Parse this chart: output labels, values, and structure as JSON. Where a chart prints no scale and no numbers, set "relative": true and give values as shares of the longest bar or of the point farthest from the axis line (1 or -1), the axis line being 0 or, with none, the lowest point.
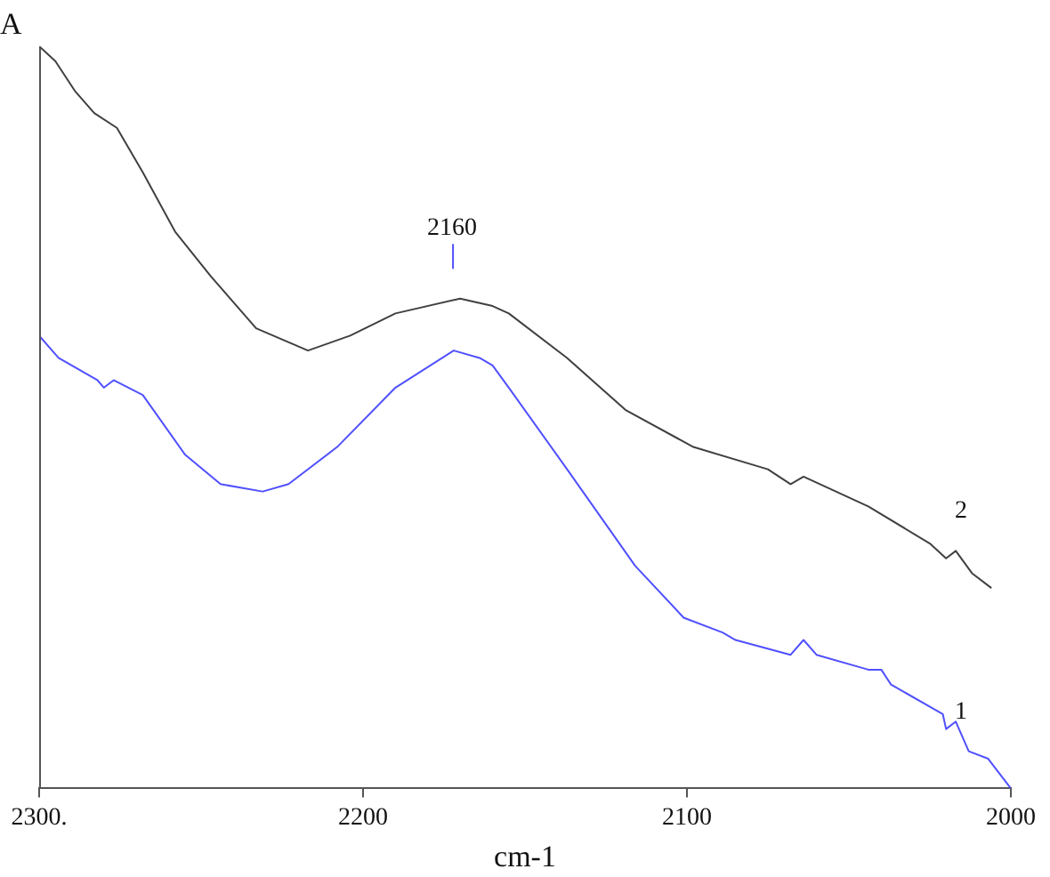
{
  "chart_data": {
    "type": "line",
    "ylabel": "A",
    "xlabel": "cm-1",
    "relative": true,
    "xlim": [
      2300,
      2000
    ],
    "xticks": [
      {
        "value": 2300,
        "label": "2300."
      },
      2200,
      2100,
      2000
    ],
    "annotations": [
      "2160"
    ],
    "series": [
      {
        "name": "2",
        "color": "#404040",
        "x": [
          2300,
          2295,
          2289,
          2283,
          2276,
          2268,
          2258,
          2247,
          2233,
          2217,
          2204,
          2190,
          2170,
          2160,
          2155,
          2137,
          2119,
          2098,
          2075,
          2068,
          2064,
          2044,
          2025,
          2020,
          2017,
          2012,
          2006
        ],
        "values": [
          1.0,
          0.98,
          0.94,
          0.91,
          0.89,
          0.83,
          0.75,
          0.69,
          0.62,
          0.59,
          0.61,
          0.64,
          0.66,
          0.65,
          0.64,
          0.58,
          0.51,
          0.46,
          0.43,
          0.41,
          0.42,
          0.38,
          0.33,
          0.31,
          0.32,
          0.29,
          0.27
        ]
      },
      {
        "name": "1",
        "color": "#5050ff",
        "x": [
          2300,
          2294,
          2282,
          2280,
          2277,
          2268,
          2255,
          2244,
          2231,
          2223,
          2208,
          2190,
          2172,
          2164,
          2160,
          2155,
          2137,
          2116,
          2101,
          2089,
          2085,
          2068,
          2064,
          2060,
          2044,
          2040,
          2037,
          2021,
          2020,
          2017,
          2013,
          2007,
          2000
        ],
        "values": [
          0.61,
          0.58,
          0.55,
          0.54,
          0.55,
          0.53,
          0.45,
          0.41,
          0.4,
          0.41,
          0.46,
          0.54,
          0.59,
          0.58,
          0.57,
          0.54,
          0.43,
          0.3,
          0.23,
          0.21,
          0.2,
          0.18,
          0.2,
          0.18,
          0.16,
          0.16,
          0.14,
          0.1,
          0.08,
          0.09,
          0.05,
          0.04,
          0.0
        ]
      }
    ],
    "legend": false
  }
}
